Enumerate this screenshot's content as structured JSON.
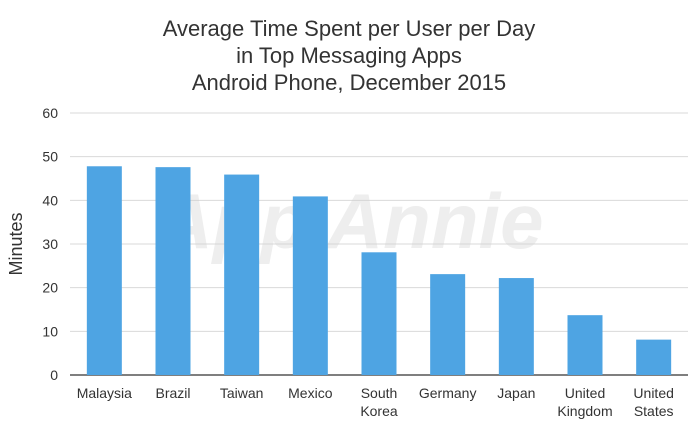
{
  "watermark": "App Annie",
  "colors": {
    "bar": "#4ea4e3",
    "grid": "#d9d9d9",
    "axis": "#555555",
    "text": "#333333"
  },
  "chart_data": {
    "type": "bar",
    "title": [
      "Average Time Spent per User per Day",
      "in Top Messaging Apps",
      "Android Phone, December 2015"
    ],
    "ylabel": "Minutes",
    "xlabel": "",
    "ylim": [
      0,
      60
    ],
    "yticks": [
      0,
      10,
      20,
      30,
      40,
      50,
      60
    ],
    "grid": true,
    "categories": [
      [
        "Malaysia"
      ],
      [
        "Brazil"
      ],
      [
        "Taiwan"
      ],
      [
        "Mexico"
      ],
      [
        "South",
        "Korea"
      ],
      [
        "Germany"
      ],
      [
        "Japan"
      ],
      [
        "United",
        "Kingdom"
      ],
      [
        "United",
        "States"
      ]
    ],
    "values": [
      47.8,
      47.6,
      45.9,
      40.9,
      28.1,
      23.1,
      22.2,
      13.7,
      8.1
    ]
  }
}
